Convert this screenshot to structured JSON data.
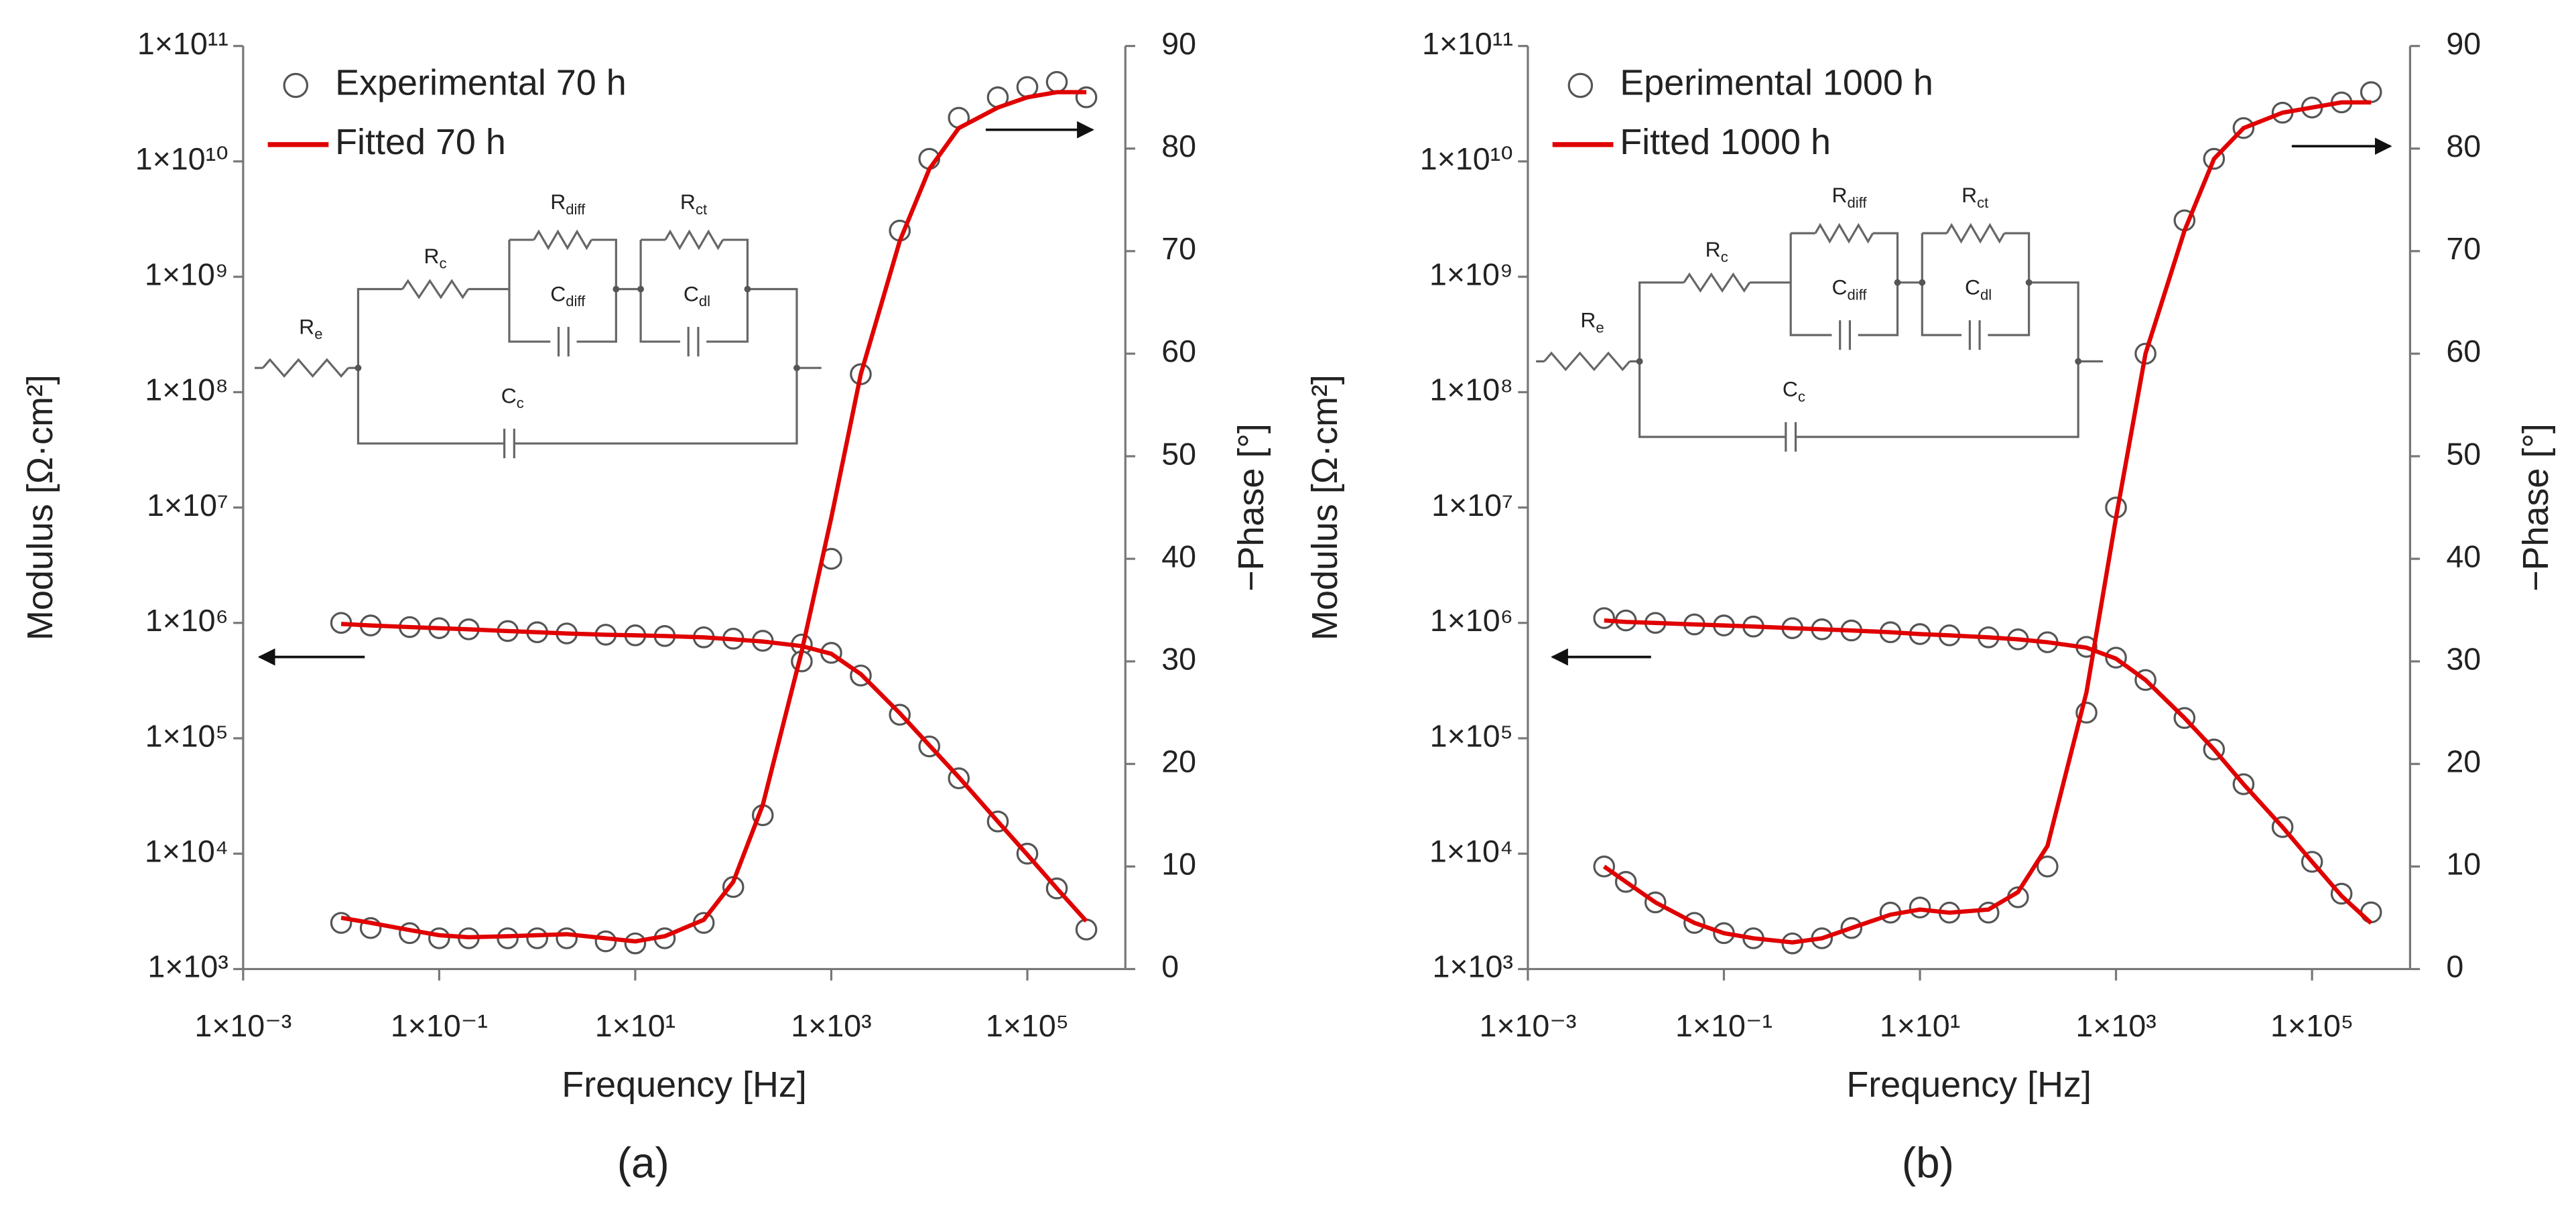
{
  "chart_data": [
    {
      "type": "line",
      "caption": "(a)",
      "x_label": "Frequency [Hz]",
      "y_label": "Modulus [Ω·cm²]",
      "y2_label": "−Phase [°]",
      "xscale": "log",
      "yscale": "log",
      "legend": "upper left",
      "xlim": [
        0.001,
        1000000
      ],
      "xticks": [
        {
          "value": 0.001,
          "label": "1×10⁻³"
        },
        {
          "value": 0.1,
          "label": "1×10⁻¹"
        },
        {
          "value": 10,
          "label": "1×10¹"
        },
        {
          "value": 1000,
          "label": "1×10³"
        },
        {
          "value": 100000,
          "label": "1×10⁵"
        }
      ],
      "ylim": [
        1000,
        100000000000
      ],
      "yticks": [
        {
          "value": 1000,
          "label": "1×10³"
        },
        {
          "value": 10000,
          "label": "1×10⁴"
        },
        {
          "value": 100000,
          "label": "1×10⁵"
        },
        {
          "value": 1000000,
          "label": "1×10⁶"
        },
        {
          "value": 10000000,
          "label": "1×10⁷"
        },
        {
          "value": 100000000,
          "label": "1×10⁸"
        },
        {
          "value": 1000000000,
          "label": "1×10⁹"
        },
        {
          "value": 10000000000,
          "label": "1×10¹⁰"
        },
        {
          "value": 100000000000,
          "label": "1×10¹¹"
        }
      ],
      "y2lim": [
        0,
        90
      ],
      "y2ticks": [
        0,
        10,
        20,
        30,
        40,
        50,
        60,
        70,
        80,
        90
      ],
      "circuit_labels": [
        {
          "main": "R",
          "sub": "e"
        },
        {
          "main": "R",
          "sub": "c"
        },
        {
          "main": "R",
          "sub": "diff"
        },
        {
          "main": "C",
          "sub": "diff"
        },
        {
          "main": "R",
          "sub": "ct"
        },
        {
          "main": "C",
          "sub": "dl"
        },
        {
          "main": "C",
          "sub": "c"
        }
      ],
      "x": [
        0.01,
        0.02,
        0.05,
        0.1,
        0.2,
        0.5,
        1,
        2,
        5,
        10,
        20,
        50,
        100,
        200,
        500,
        1000,
        2000,
        5000,
        10000,
        20000,
        50000,
        100000,
        200000,
        400000
      ],
      "series": [
        {
          "name": "Experimental 70 h",
          "marker": "circle",
          "color": "#555555",
          "values": [
            1000000,
            950000,
            920000,
            900000,
            880000,
            850000,
            830000,
            810000,
            790000,
            780000,
            770000,
            750000,
            730000,
            700000,
            650000,
            550000,
            350000,
            160000,
            85000,
            45000,
            19000,
            10000,
            5000,
            2200
          ],
          "y2_values": [
            4.5,
            4,
            3.5,
            3,
            3,
            3,
            3,
            3,
            2.7,
            2.5,
            3,
            4.5,
            8,
            15,
            30,
            40,
            58,
            72,
            79,
            83,
            85,
            86,
            86.5,
            85
          ]
        },
        {
          "name": "Fitted 70 h",
          "marker": "line",
          "color": "#e00000",
          "values": [
            980000,
            950000,
            920000,
            900000,
            880000,
            850000,
            830000,
            810000,
            790000,
            780000,
            770000,
            750000,
            720000,
            690000,
            630000,
            540000,
            360000,
            165000,
            87000,
            46000,
            19000,
            9800,
            5000,
            2600
          ],
          "y2_values": [
            5,
            4.5,
            3.8,
            3.3,
            3.1,
            3.2,
            3.3,
            3.4,
            3,
            2.7,
            3.2,
            4.8,
            8.5,
            16,
            31,
            44,
            58,
            71,
            78,
            82,
            84,
            85,
            85.5,
            85.5
          ]
        }
      ]
    },
    {
      "type": "line",
      "caption": "(b)",
      "x_label": "Frequency [Hz]",
      "y_label": "Modulus [Ω·cm²]",
      "y2_label": "−Phase [°]",
      "xscale": "log",
      "yscale": "log",
      "legend": "upper left",
      "xlim": [
        0.001,
        1000000
      ],
      "xticks": [
        {
          "value": 0.001,
          "label": "1×10⁻³"
        },
        {
          "value": 0.1,
          "label": "1×10⁻¹"
        },
        {
          "value": 10,
          "label": "1×10¹"
        },
        {
          "value": 1000,
          "label": "1×10³"
        },
        {
          "value": 100000,
          "label": "1×10⁵"
        }
      ],
      "ylim": [
        1000,
        100000000000
      ],
      "yticks": [
        {
          "value": 1000,
          "label": "1×10³"
        },
        {
          "value": 10000,
          "label": "1×10⁴"
        },
        {
          "value": 100000,
          "label": "1×10⁵"
        },
        {
          "value": 1000000,
          "label": "1×10⁶"
        },
        {
          "value": 10000000,
          "label": "1×10⁷"
        },
        {
          "value": 100000000,
          "label": "1×10⁸"
        },
        {
          "value": 1000000000,
          "label": "1×10⁹"
        },
        {
          "value": 10000000000,
          "label": "1×10¹⁰"
        },
        {
          "value": 100000000000,
          "label": "1×10¹¹"
        }
      ],
      "y2lim": [
        0,
        90
      ],
      "y2ticks": [
        0,
        10,
        20,
        30,
        40,
        50,
        60,
        70,
        80,
        90
      ],
      "circuit_labels": [
        {
          "main": "R",
          "sub": "e"
        },
        {
          "main": "R",
          "sub": "c"
        },
        {
          "main": "R",
          "sub": "diff"
        },
        {
          "main": "C",
          "sub": "diff"
        },
        {
          "main": "R",
          "sub": "ct"
        },
        {
          "main": "C",
          "sub": "dl"
        },
        {
          "main": "C",
          "sub": "c"
        }
      ],
      "x": [
        0.006,
        0.01,
        0.02,
        0.05,
        0.1,
        0.2,
        0.5,
        1,
        2,
        5,
        10,
        20,
        50,
        100,
        200,
        500,
        1000,
        2000,
        5000,
        10000,
        20000,
        50000,
        100000,
        200000,
        400000
      ],
      "series": [
        {
          "name": "Eperimental 1000 h",
          "marker": "circle",
          "color": "#555555",
          "values": [
            1100000,
            1050000,
            1000000,
            970000,
            950000,
            930000,
            900000,
            880000,
            860000,
            830000,
            800000,
            780000,
            750000,
            720000,
            680000,
            620000,
            500000,
            320000,
            150000,
            80000,
            40000,
            17000,
            8500,
            4500,
            3100
          ],
          "y2_values": [
            10,
            8.5,
            6.5,
            4.5,
            3.5,
            3,
            2.5,
            3,
            4,
            5.5,
            6,
            5.5,
            5.5,
            7,
            10,
            25,
            45,
            60,
            73,
            79,
            82,
            83.5,
            84,
            84.5,
            85.5
          ]
        },
        {
          "name": "Fitted 1000 h",
          "marker": "line",
          "color": "#e00000",
          "values": [
            1050000,
            1020000,
            1000000,
            970000,
            950000,
            930000,
            900000,
            880000,
            860000,
            830000,
            800000,
            780000,
            750000,
            720000,
            680000,
            610000,
            490000,
            320000,
            150000,
            80000,
            40000,
            17000,
            8500,
            4300,
            2500
          ],
          "y2_values": [
            10,
            8.5,
            6.5,
            4.5,
            3.5,
            3,
            2.6,
            3,
            4,
            5.3,
            5.8,
            5.5,
            5.8,
            7.5,
            12,
            27,
            44,
            60,
            72,
            79,
            82,
            83.5,
            84,
            84.5,
            84.5
          ]
        }
      ]
    }
  ]
}
